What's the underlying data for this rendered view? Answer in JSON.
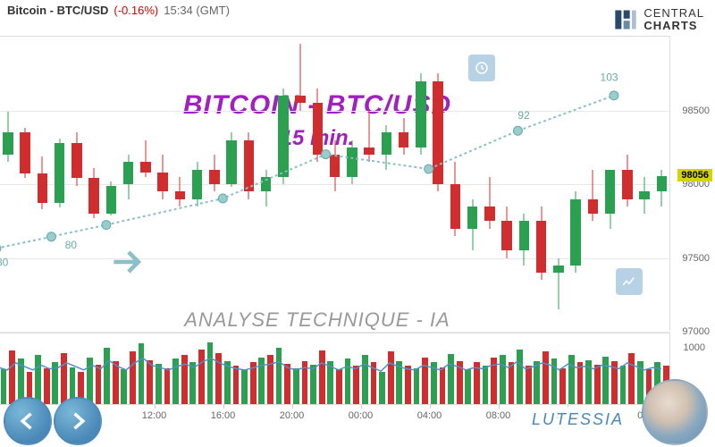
{
  "header": {
    "ticker": "Bitcoin - BTC/USD",
    "change": "(-0.16%)",
    "time": "15:34 (GMT)"
  },
  "logo": {
    "line1": "CENTRAL",
    "line2": "CHARTS"
  },
  "chart": {
    "title": "BITCOIN - BTC/USD",
    "subtitle": "15 min.",
    "analysis_label": "ANALYSE TECHNIQUE - IA",
    "price_tag": "98056",
    "ylim": [
      97000,
      99000
    ],
    "yticks": [
      97000,
      97500,
      98000,
      98500
    ],
    "grid_color": "#e8e8e8",
    "up_color": "#2aa050",
    "down_color": "#d02e2e",
    "candles": [
      [
        97820,
        98250,
        97790,
        98200
      ],
      [
        98200,
        98490,
        98150,
        98350
      ],
      [
        98350,
        98380,
        98040,
        98070
      ],
      [
        98070,
        98190,
        97830,
        97870
      ],
      [
        97870,
        98310,
        97840,
        98280
      ],
      [
        98280,
        98350,
        97990,
        98040
      ],
      [
        98040,
        98110,
        97770,
        97800
      ],
      [
        97800,
        98020,
        97790,
        97990
      ],
      [
        98000,
        98200,
        97900,
        98150
      ],
      [
        98150,
        98300,
        98050,
        98080
      ],
      [
        98080,
        98200,
        97900,
        97950
      ],
      [
        97950,
        98050,
        97850,
        97900
      ],
      [
        97900,
        98150,
        97850,
        98100
      ],
      [
        98100,
        98200,
        97950,
        98000
      ],
      [
        98000,
        98350,
        97980,
        98300
      ],
      [
        98300,
        98350,
        97900,
        97950
      ],
      [
        97950,
        98100,
        97850,
        98050
      ],
      [
        98050,
        98650,
        98000,
        98600
      ],
      [
        98600,
        98950,
        98500,
        98550
      ],
      [
        98550,
        98650,
        98150,
        98200
      ],
      [
        98200,
        98300,
        97950,
        98050
      ],
      [
        98050,
        98300,
        98000,
        98250
      ],
      [
        98250,
        98500,
        98150,
        98200
      ],
      [
        98200,
        98400,
        98100,
        98350
      ],
      [
        98350,
        98450,
        98200,
        98250
      ],
      [
        98250,
        98750,
        98200,
        98700
      ],
      [
        98700,
        98750,
        97950,
        98000
      ],
      [
        98000,
        98150,
        97650,
        97700
      ],
      [
        97700,
        97900,
        97550,
        97850
      ],
      [
        97850,
        98050,
        97700,
        97750
      ],
      [
        97750,
        97850,
        97500,
        97550
      ],
      [
        97550,
        97800,
        97450,
        97750
      ],
      [
        97750,
        97850,
        97350,
        97400
      ],
      [
        97400,
        97500,
        97150,
        97450
      ],
      [
        97450,
        97950,
        97400,
        97900
      ],
      [
        97900,
        98100,
        97750,
        97800
      ],
      [
        97800,
        98050,
        97700,
        98100
      ],
      [
        98100,
        98200,
        97850,
        97900
      ],
      [
        97900,
        98050,
        97800,
        97950
      ],
      [
        97950,
        98100,
        97850,
        98056
      ]
    ],
    "overlay_color": "#8ac0c8",
    "overlay_points": [
      [
        0.02,
        0.72
      ],
      [
        0.1,
        0.68
      ],
      [
        0.18,
        0.64
      ],
      [
        0.35,
        0.55
      ],
      [
        0.5,
        0.4
      ],
      [
        0.65,
        0.45
      ],
      [
        0.78,
        0.32
      ],
      [
        0.92,
        0.2
      ]
    ],
    "overlay_labels": [
      [
        0.02,
        0.78,
        "80"
      ],
      [
        0.12,
        0.72,
        "80"
      ],
      [
        0.78,
        0.28,
        "92"
      ],
      [
        0.9,
        0.15,
        "103"
      ]
    ]
  },
  "xaxis": {
    "labels": [
      "04:00",
      "08:00",
      "12:00",
      "16:00",
      "20:00",
      "00:00",
      "04:00",
      "08:00",
      "12:00",
      "00:00"
    ],
    "positions": [
      0.05,
      0.15,
      0.25,
      0.35,
      0.45,
      0.55,
      0.65,
      0.75,
      0.85,
      0.97
    ]
  },
  "volume": {
    "ylabel": "1000",
    "up_color": "#2aa050",
    "down_color": "#d02e2e",
    "line_color": "#5090c8",
    "bars": [
      650,
      720,
      580,
      900,
      760,
      540,
      820,
      600,
      700,
      850,
      620,
      540,
      780,
      660,
      940,
      720,
      580,
      880,
      1020,
      740,
      680,
      600,
      760,
      820,
      700,
      920,
      1040,
      860,
      720,
      640,
      580,
      700,
      780,
      820,
      940,
      680,
      600,
      720,
      660,
      900,
      720,
      580,
      760,
      640,
      820,
      700,
      540,
      880,
      720,
      650,
      600,
      780,
      700,
      620,
      840,
      720,
      580,
      700,
      640,
      780,
      820,
      700,
      920,
      640,
      720,
      880,
      760,
      600,
      820,
      700,
      740,
      660,
      800,
      720,
      640,
      860,
      720,
      580,
      700,
      640
    ],
    "line": [
      560,
      620,
      580,
      700,
      640,
      580,
      660,
      600,
      620,
      700,
      640,
      580,
      660,
      600,
      740,
      640,
      580,
      700,
      780,
      660,
      620,
      580,
      640,
      680,
      620,
      720,
      780,
      700,
      640,
      600,
      580,
      620,
      660,
      680,
      720,
      620,
      580,
      620,
      600,
      700,
      640,
      580,
      640,
      600,
      680,
      620,
      560,
      700,
      640,
      600,
      580,
      660,
      620,
      580,
      680,
      640,
      580,
      620,
      600,
      660,
      680,
      620,
      720,
      600,
      640,
      700,
      660,
      580,
      680,
      620,
      640,
      600,
      660,
      640,
      600,
      700,
      640,
      580,
      620,
      600
    ]
  },
  "brand_badge": "LUTESSIA"
}
